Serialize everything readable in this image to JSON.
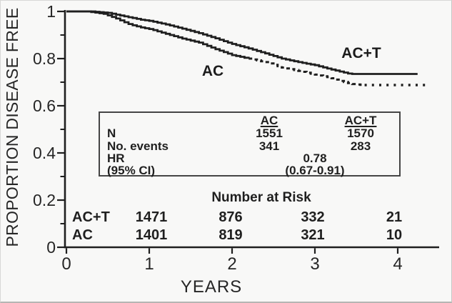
{
  "figure": {
    "kind": "kaplan-meier-survival-plot",
    "ink_color": "#1f1f1f",
    "background_color": "#f8f8f7"
  },
  "chart_data": {
    "type": "line",
    "subtype": "kaplan-meier-step",
    "title": "",
    "xlabel": "YEARS",
    "ylabel": "PROPORTION DISEASE FREE",
    "xlim": [
      0,
      4.5
    ],
    "ylim": [
      0,
      1.0
    ],
    "grid": false,
    "x_ticks": {
      "values": [
        0,
        1,
        2,
        3,
        4
      ],
      "labels": [
        "0",
        "1",
        "2",
        "3",
        "4"
      ]
    },
    "y_ticks": {
      "values": [
        1.0,
        0.8,
        0.6,
        0.4,
        0.2,
        0
      ],
      "labels": [
        "1",
        "0.8",
        "0.6",
        "0.4",
        "0.2",
        "0"
      ],
      "minor": [
        0.9,
        0.7,
        0.5,
        0.3,
        0.1
      ]
    },
    "series": [
      {
        "name": "AC+T",
        "line": "solid",
        "segments": [
          {
            "to": 4.24,
            "style": "solid"
          }
        ],
        "points": [
          [
            0,
            1.0
          ],
          [
            0.3,
            1.0
          ],
          [
            0.5,
            0.994
          ],
          [
            0.7,
            0.979
          ],
          [
            0.9,
            0.965
          ],
          [
            1.0,
            0.96
          ],
          [
            1.2,
            0.945
          ],
          [
            1.4,
            0.927
          ],
          [
            1.6,
            0.908
          ],
          [
            1.8,
            0.886
          ],
          [
            2.0,
            0.862
          ],
          [
            2.2,
            0.843
          ],
          [
            2.4,
            0.822
          ],
          [
            2.6,
            0.8
          ],
          [
            2.8,
            0.785
          ],
          [
            3.0,
            0.772
          ],
          [
            3.15,
            0.758
          ],
          [
            3.3,
            0.745
          ],
          [
            3.42,
            0.735
          ],
          [
            4.24,
            0.735
          ]
        ]
      },
      {
        "name": "AC",
        "line": "solid-then-dashed",
        "segments": [
          {
            "to": 2.2,
            "style": "solid"
          },
          {
            "to": 3.6,
            "style": "dashed"
          },
          {
            "to": 4.37,
            "style": "dotted"
          }
        ],
        "points": [
          [
            0,
            1.0
          ],
          [
            0.25,
            1.0
          ],
          [
            0.45,
            0.99
          ],
          [
            0.6,
            0.97
          ],
          [
            0.76,
            0.945
          ],
          [
            0.9,
            0.932
          ],
          [
            1.02,
            0.924
          ],
          [
            1.2,
            0.905
          ],
          [
            1.4,
            0.885
          ],
          [
            1.6,
            0.868
          ],
          [
            1.8,
            0.84
          ],
          [
            2.0,
            0.815
          ],
          [
            2.2,
            0.8
          ],
          [
            2.4,
            0.785
          ],
          [
            2.6,
            0.762
          ],
          [
            2.8,
            0.748
          ],
          [
            3.0,
            0.732
          ],
          [
            3.17,
            0.72
          ],
          [
            3.3,
            0.705
          ],
          [
            3.45,
            0.692
          ],
          [
            3.56,
            0.688
          ],
          [
            4.37,
            0.688
          ]
        ]
      }
    ],
    "curve_labels": [
      {
        "text": "AC"
      },
      {
        "text": "AC+T"
      }
    ],
    "inset_table": {
      "col_headers": [
        "AC",
        "AC+T"
      ],
      "rows": [
        {
          "label": "N",
          "ac": "1551",
          "act": "1570"
        },
        {
          "label": "No. events",
          "ac": "341",
          "act": "283"
        },
        {
          "label": "HR",
          "mid": "0.78"
        },
        {
          "label": "(95% CI)",
          "mid": "(0.67-0.91)"
        }
      ]
    },
    "number_at_risk": {
      "title": "Number at Risk",
      "rows": [
        {
          "label": "AC+T",
          "values": [
            "1471",
            "876",
            "332",
            "21"
          ]
        },
        {
          "label": "AC",
          "values": [
            "1401",
            "819",
            "321",
            "10"
          ]
        }
      ]
    }
  }
}
